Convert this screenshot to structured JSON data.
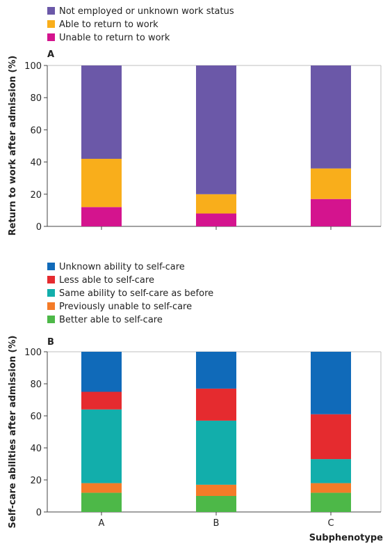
{
  "chart_data": [
    {
      "type": "bar",
      "stacked": true,
      "panel": "A",
      "categories": [
        "A",
        "B",
        "C"
      ],
      "series": [
        {
          "name": "Unable to return to work",
          "color": "#d4148e",
          "values": [
            12,
            8,
            17
          ]
        },
        {
          "name": "Able to return to work",
          "color": "#f9ae1b",
          "values": [
            30,
            12,
            19
          ]
        },
        {
          "name": "Not employed or unknown work status",
          "color": "#6b58a8",
          "values": [
            58,
            80,
            64
          ]
        }
      ],
      "legend_order": [
        2,
        1,
        0
      ],
      "ylabel": "Return to work after admission (%)",
      "ylim": [
        0,
        100
      ],
      "yticks": [
        0,
        20,
        40,
        60,
        80,
        100
      ],
      "grid": false,
      "legend_position": "top-left"
    },
    {
      "type": "bar",
      "stacked": true,
      "panel": "B",
      "categories": [
        "A",
        "B",
        "C"
      ],
      "series": [
        {
          "name": "Better able to self-care",
          "color": "#4db848",
          "values": [
            12,
            10,
            12
          ]
        },
        {
          "name": "Previously unable to self-care",
          "color": "#f47b28",
          "values": [
            6,
            7,
            6
          ]
        },
        {
          "name": "Same ability to self-care as before",
          "color": "#12aeab",
          "values": [
            46,
            40,
            15
          ]
        },
        {
          "name": "Less able to self-care",
          "color": "#e52b2f",
          "values": [
            11,
            20,
            28
          ]
        },
        {
          "name": "Unknown ability to self-care",
          "color": "#106ab9",
          "values": [
            25,
            23,
            39
          ]
        }
      ],
      "legend_order": [
        4,
        3,
        2,
        1,
        0
      ],
      "xlabel": "Subphenotype",
      "ylabel": "Self-care abilities after admission (%)",
      "ylim": [
        0,
        100
      ],
      "yticks": [
        0,
        20,
        40,
        60,
        80,
        100
      ],
      "grid": false,
      "legend_position": "top-left"
    }
  ]
}
